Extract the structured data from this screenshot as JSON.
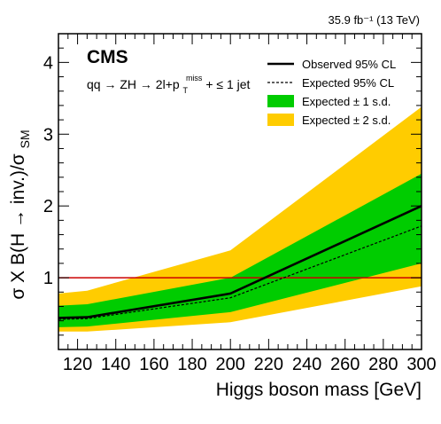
{
  "chart_data": {
    "type": "line",
    "lumi_label": "35.9 fb⁻¹ (13 TeV)",
    "cms_label": "CMS",
    "process_label": "qq → ZH → 2l+p",
    "process_super": "miss",
    "process_sub": "T",
    "process_suffix": " + ≤ 1 jet",
    "xlabel": "Higgs boson mass [GeV]",
    "ylabel": "σ X B(H → inv.)/σ",
    "ylabel_sub": "SM",
    "xlim": [
      110,
      300
    ],
    "ylim": [
      0,
      4.4
    ],
    "x_ticks": [
      120,
      140,
      160,
      180,
      200,
      220,
      240,
      260,
      280,
      300
    ],
    "y_ticks": [
      1,
      2,
      3,
      4
    ],
    "x": [
      110,
      125,
      200,
      300
    ],
    "series": [
      {
        "name": "Observed 95% CL",
        "style": "solid",
        "color": "#000000",
        "values": [
          0.44,
          0.45,
          0.78,
          2.0
        ]
      },
      {
        "name": "Expected 95% CL",
        "style": "dashed",
        "color": "#000000",
        "values": [
          0.42,
          0.43,
          0.72,
          1.72
        ]
      }
    ],
    "bands": [
      {
        "name": "Expected ± 2 s.d.",
        "color": "#ffcc00",
        "lower": [
          0.25,
          0.25,
          0.38,
          0.88
        ],
        "upper": [
          0.78,
          0.82,
          1.38,
          3.38
        ]
      },
      {
        "name": "Expected ± 1 s.d.",
        "color": "#00cc00",
        "lower": [
          0.31,
          0.32,
          0.52,
          1.2
        ],
        "upper": [
          0.61,
          0.63,
          1.0,
          2.45
        ]
      }
    ],
    "reference_line": {
      "y": 1,
      "color": "#cc0000"
    },
    "legend_order": [
      "Observed 95% CL",
      "Expected 95% CL",
      "Expected ± 1 s.d.",
      "Expected ± 2 s.d."
    ],
    "legend_position": "top-right"
  }
}
